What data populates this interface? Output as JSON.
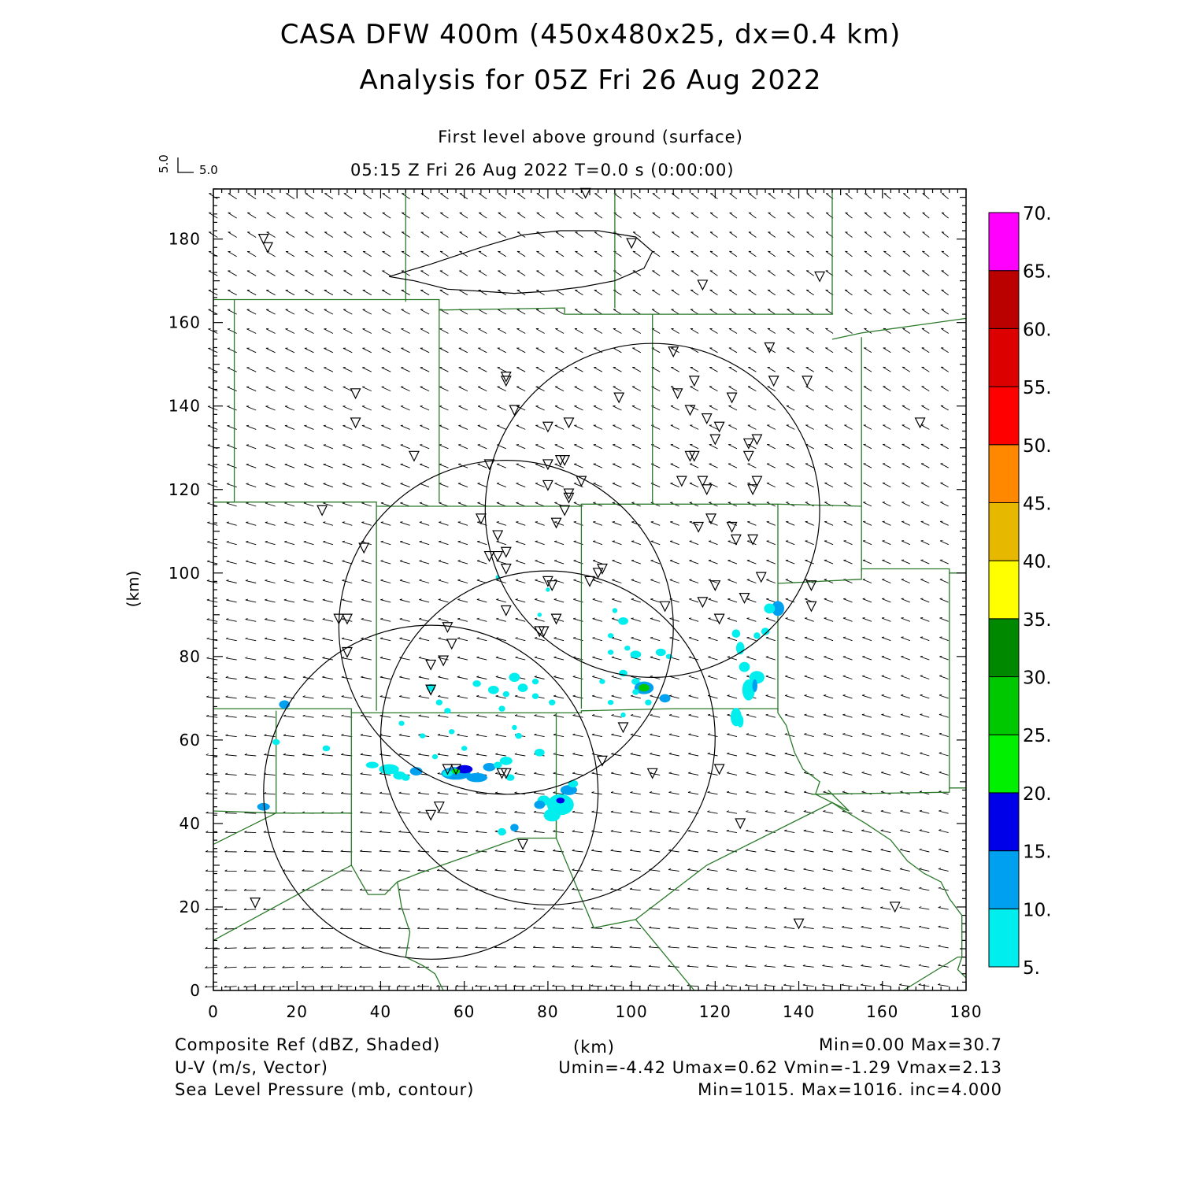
{
  "title_line1": "CASA DFW 400m (450x480x25, dx=0.4 km)",
  "title_line2": "Analysis for 05Z Fri 26 Aug 2022",
  "level_label": "First level above ground (surface)",
  "time_label": "05:15 Z Fri 26 Aug 2022    T=0.0 s (0:00:00)",
  "vector_key": {
    "u": "5.0",
    "v": "5.0"
  },
  "footer": {
    "left": [
      "Composite Ref (dBZ, Shaded)",
      "U-V (m/s, Vector)",
      "Sea Level Pressure (mb, contour)"
    ],
    "center": "(km)",
    "right": [
      "Min=0.00 Max=30.7",
      "Umin=-4.42 Umax=0.62 Vmin=-1.29 Vmax=2.13",
      "Min=1015. Max=1016. inc=4.000"
    ]
  },
  "chart_data": {
    "type": "heatmap",
    "xlabel": "",
    "ylabel": "(km)",
    "xlim": [
      0,
      180
    ],
    "ylim": [
      0,
      192
    ],
    "x_ticks": [
      "0",
      "20",
      "40",
      "60",
      "80",
      "100",
      "120",
      "140",
      "160",
      "180"
    ],
    "y_ticks": [
      "0",
      "20",
      "40",
      "60",
      "80",
      "100",
      "120",
      "140",
      "160",
      "180"
    ],
    "colorbar": {
      "labels": [
        "5.",
        "10.",
        "15.",
        "20.",
        "25.",
        "30.",
        "35.",
        "40.",
        "45.",
        "50.",
        "55.",
        "60.",
        "65.",
        "70."
      ],
      "colors": [
        "#00eeee",
        "#00a0f0",
        "#0000e8",
        "#00f000",
        "#00c800",
        "#008800",
        "#ffff00",
        "#e6b800",
        "#ff8800",
        "#ff0000",
        "#dd0000",
        "#bb0000",
        "#ff00ff"
      ]
    },
    "radar_rings": [
      {
        "cx": 52,
        "cy": 47.5,
        "r": 40
      },
      {
        "cx": 70,
        "cy": 87,
        "r": 40
      },
      {
        "cx": 80,
        "cy": 60.5,
        "r": 40
      },
      {
        "cx": 105,
        "cy": 115,
        "r": 40
      }
    ],
    "pressure_contour": [
      [
        42,
        171
      ],
      [
        48,
        170
      ],
      [
        56,
        168
      ],
      [
        64,
        167.5
      ],
      [
        72,
        167
      ],
      [
        80,
        167.5
      ],
      [
        88,
        168.5
      ],
      [
        96,
        170
      ],
      [
        103,
        173
      ],
      [
        105,
        177
      ],
      [
        101,
        180.5
      ],
      [
        92,
        182
      ],
      [
        83,
        182
      ],
      [
        74,
        181
      ],
      [
        64,
        178
      ],
      [
        52,
        174
      ],
      [
        42,
        171
      ]
    ],
    "stations": [
      [
        12,
        180
      ],
      [
        13,
        178
      ],
      [
        34,
        143
      ],
      [
        34,
        136
      ],
      [
        26,
        115
      ],
      [
        36,
        106
      ],
      [
        30,
        89
      ],
      [
        32,
        89
      ],
      [
        32,
        81
      ],
      [
        48,
        128
      ],
      [
        70,
        147
      ],
      [
        70,
        146
      ],
      [
        72,
        139
      ],
      [
        66,
        126
      ],
      [
        64,
        113
      ],
      [
        68,
        109
      ],
      [
        68,
        104
      ],
      [
        66,
        104
      ],
      [
        70,
        105
      ],
      [
        70,
        101
      ],
      [
        80,
        126
      ],
      [
        83,
        127
      ],
      [
        84,
        127
      ],
      [
        80,
        121
      ],
      [
        82,
        112
      ],
      [
        84,
        115
      ],
      [
        85,
        119
      ],
      [
        85,
        118
      ],
      [
        88,
        122
      ],
      [
        80,
        135
      ],
      [
        85,
        136
      ],
      [
        97,
        142
      ],
      [
        92,
        100
      ],
      [
        93,
        101
      ],
      [
        90,
        98
      ],
      [
        80,
        98
      ],
      [
        81,
        97
      ],
      [
        82,
        89
      ],
      [
        78,
        86
      ],
      [
        79,
        86
      ],
      [
        110,
        153
      ],
      [
        120,
        132
      ],
      [
        115,
        146
      ],
      [
        114,
        139
      ],
      [
        118,
        137
      ],
      [
        121,
        135
      ],
      [
        124,
        142
      ],
      [
        117,
        169
      ],
      [
        111,
        143
      ],
      [
        112,
        122
      ],
      [
        114,
        128
      ],
      [
        115,
        128
      ],
      [
        117,
        122
      ],
      [
        118,
        120
      ],
      [
        116,
        111
      ],
      [
        119,
        113
      ],
      [
        124,
        111
      ],
      [
        125,
        108
      ],
      [
        129,
        108
      ],
      [
        128,
        131
      ],
      [
        128,
        128
      ],
      [
        130,
        132
      ],
      [
        130,
        122
      ],
      [
        129,
        120
      ],
      [
        133,
        154
      ],
      [
        134,
        146
      ],
      [
        142,
        146
      ],
      [
        169,
        136
      ],
      [
        145,
        171
      ],
      [
        100,
        179
      ],
      [
        89,
        191
      ],
      [
        120,
        97
      ],
      [
        117,
        93
      ],
      [
        108,
        92
      ],
      [
        131,
        99
      ],
      [
        127,
        94
      ],
      [
        143,
        97
      ],
      [
        143,
        92
      ],
      [
        121,
        89
      ],
      [
        70,
        91
      ],
      [
        56,
        87
      ],
      [
        57,
        83
      ],
      [
        52,
        78
      ],
      [
        55,
        79
      ],
      [
        52,
        72
      ],
      [
        52,
        72
      ],
      [
        58,
        53
      ],
      [
        56,
        53
      ],
      [
        69,
        52
      ],
      [
        70,
        52
      ],
      [
        93,
        55
      ],
      [
        98,
        63
      ],
      [
        105,
        52
      ],
      [
        121,
        53
      ],
      [
        126,
        40
      ],
      [
        54,
        44
      ],
      [
        52,
        42
      ],
      [
        74,
        35
      ],
      [
        10,
        21
      ],
      [
        140,
        16
      ],
      [
        163,
        20
      ]
    ],
    "echoes": [
      [
        17,
        68.5,
        1.3,
        1.0,
        2
      ],
      [
        12,
        44,
        1.5,
        0.9,
        2
      ],
      [
        15,
        59.5,
        0.9,
        0.7,
        1
      ],
      [
        27,
        58,
        0.9,
        0.7,
        1
      ],
      [
        38,
        54,
        1.5,
        0.8,
        1
      ],
      [
        42,
        53,
        2.4,
        1.2,
        1
      ],
      [
        44.5,
        51.5,
        1.5,
        1.0,
        1
      ],
      [
        48.5,
        52.5,
        1.5,
        1.0,
        2
      ],
      [
        46,
        51,
        1.0,
        0.8,
        1
      ],
      [
        58,
        52,
        3.5,
        1.5,
        2
      ],
      [
        60,
        53,
        2.0,
        1.0,
        3
      ],
      [
        58,
        52.5,
        1.0,
        0.6,
        4
      ],
      [
        63,
        51,
        2.5,
        1.1,
        2
      ],
      [
        56,
        52,
        1.2,
        0.8,
        1
      ],
      [
        66,
        53.5,
        1.5,
        1.0,
        2
      ],
      [
        70,
        55,
        1.5,
        1.0,
        1
      ],
      [
        68,
        54,
        1.0,
        0.8,
        1
      ],
      [
        71,
        51,
        1.0,
        0.8,
        1
      ],
      [
        83,
        44.5,
        3.2,
        2.5,
        1
      ],
      [
        81,
        42,
        2.0,
        1.5,
        1
      ],
      [
        79,
        45.5,
        1.5,
        1.2,
        1
      ],
      [
        85,
        48,
        2.0,
        1.2,
        2
      ],
      [
        86,
        49.5,
        1.2,
        0.9,
        1
      ],
      [
        78,
        44.5,
        1.3,
        1.0,
        2
      ],
      [
        83,
        45.5,
        1.0,
        0.7,
        3
      ],
      [
        69,
        38,
        1.0,
        0.9,
        1
      ],
      [
        72,
        39,
        1.0,
        0.9,
        2
      ],
      [
        78,
        57,
        1.2,
        0.9,
        1
      ],
      [
        73,
        61,
        0.8,
        0.7,
        1
      ],
      [
        72,
        63,
        0.6,
        0.6,
        1
      ],
      [
        63,
        73.5,
        1.0,
        0.8,
        1
      ],
      [
        67,
        72,
        1.3,
        1.0,
        1
      ],
      [
        72,
        75,
        1.3,
        1.1,
        1
      ],
      [
        74,
        72.5,
        1.2,
        1.0,
        1
      ],
      [
        70,
        71,
        0.8,
        0.7,
        1
      ],
      [
        77,
        74,
        0.8,
        0.7,
        1
      ],
      [
        77,
        70.5,
        0.8,
        0.7,
        1
      ],
      [
        69,
        67.5,
        0.8,
        0.7,
        1
      ],
      [
        81,
        69,
        0.8,
        0.7,
        1
      ],
      [
        52,
        72.5,
        1.0,
        0.9,
        1
      ],
      [
        54,
        69,
        0.8,
        0.7,
        1
      ],
      [
        56,
        67,
        0.8,
        0.7,
        1
      ],
      [
        45,
        64,
        0.7,
        0.6,
        1
      ],
      [
        50,
        61,
        0.7,
        0.6,
        1
      ],
      [
        53,
        56,
        0.7,
        0.6,
        1
      ],
      [
        60,
        58,
        0.7,
        0.6,
        1
      ],
      [
        57,
        62,
        0.7,
        0.6,
        1
      ],
      [
        68,
        99,
        0.5,
        0.5,
        1
      ],
      [
        78,
        90,
        0.5,
        0.5,
        1
      ],
      [
        80,
        96,
        0.5,
        0.5,
        1
      ],
      [
        98,
        88.5,
        1.2,
        0.9,
        1
      ],
      [
        95,
        85,
        0.7,
        0.6,
        1
      ],
      [
        99,
        82,
        0.7,
        0.6,
        1
      ],
      [
        95,
        81,
        0.7,
        0.6,
        1
      ],
      [
        101,
        80.5,
        1.3,
        0.9,
        1
      ],
      [
        107,
        81,
        1.2,
        0.9,
        1
      ],
      [
        109,
        80,
        0.8,
        0.6,
        1
      ],
      [
        96,
        91,
        0.6,
        0.6,
        1
      ],
      [
        101,
        74,
        1.0,
        0.8,
        1
      ],
      [
        103,
        72.5,
        2.3,
        1.5,
        2
      ],
      [
        103,
        72.5,
        1.3,
        0.9,
        5
      ],
      [
        98,
        76,
        1.0,
        0.8,
        1
      ],
      [
        108,
        70,
        1.3,
        1.0,
        2
      ],
      [
        104,
        69,
        0.8,
        0.7,
        1
      ],
      [
        98,
        66,
        0.6,
        0.6,
        1
      ],
      [
        101,
        71.5,
        0.8,
        0.7,
        1
      ],
      [
        93,
        74,
        0.7,
        0.6,
        1
      ],
      [
        95,
        69,
        0.7,
        0.6,
        1
      ],
      [
        125,
        65.5,
        1.3,
        2.2,
        1
      ],
      [
        126,
        64.5,
        0.8,
        1.5,
        1
      ],
      [
        128,
        72,
        1.5,
        2.5,
        1
      ],
      [
        130,
        75,
        1.8,
        1.5,
        1
      ],
      [
        127,
        77.5,
        1.3,
        1.2,
        1
      ],
      [
        126,
        82,
        1.0,
        1.5,
        1
      ],
      [
        125,
        85.5,
        1.0,
        1.0,
        1
      ],
      [
        135,
        91.5,
        1.5,
        1.8,
        2
      ],
      [
        133,
        91.5,
        1.3,
        1.2,
        1
      ],
      [
        132,
        86,
        1.0,
        0.9,
        1
      ],
      [
        130,
        85,
        0.8,
        0.8,
        1
      ],
      [
        129.5,
        73,
        0.6,
        1.5,
        2
      ]
    ]
  }
}
